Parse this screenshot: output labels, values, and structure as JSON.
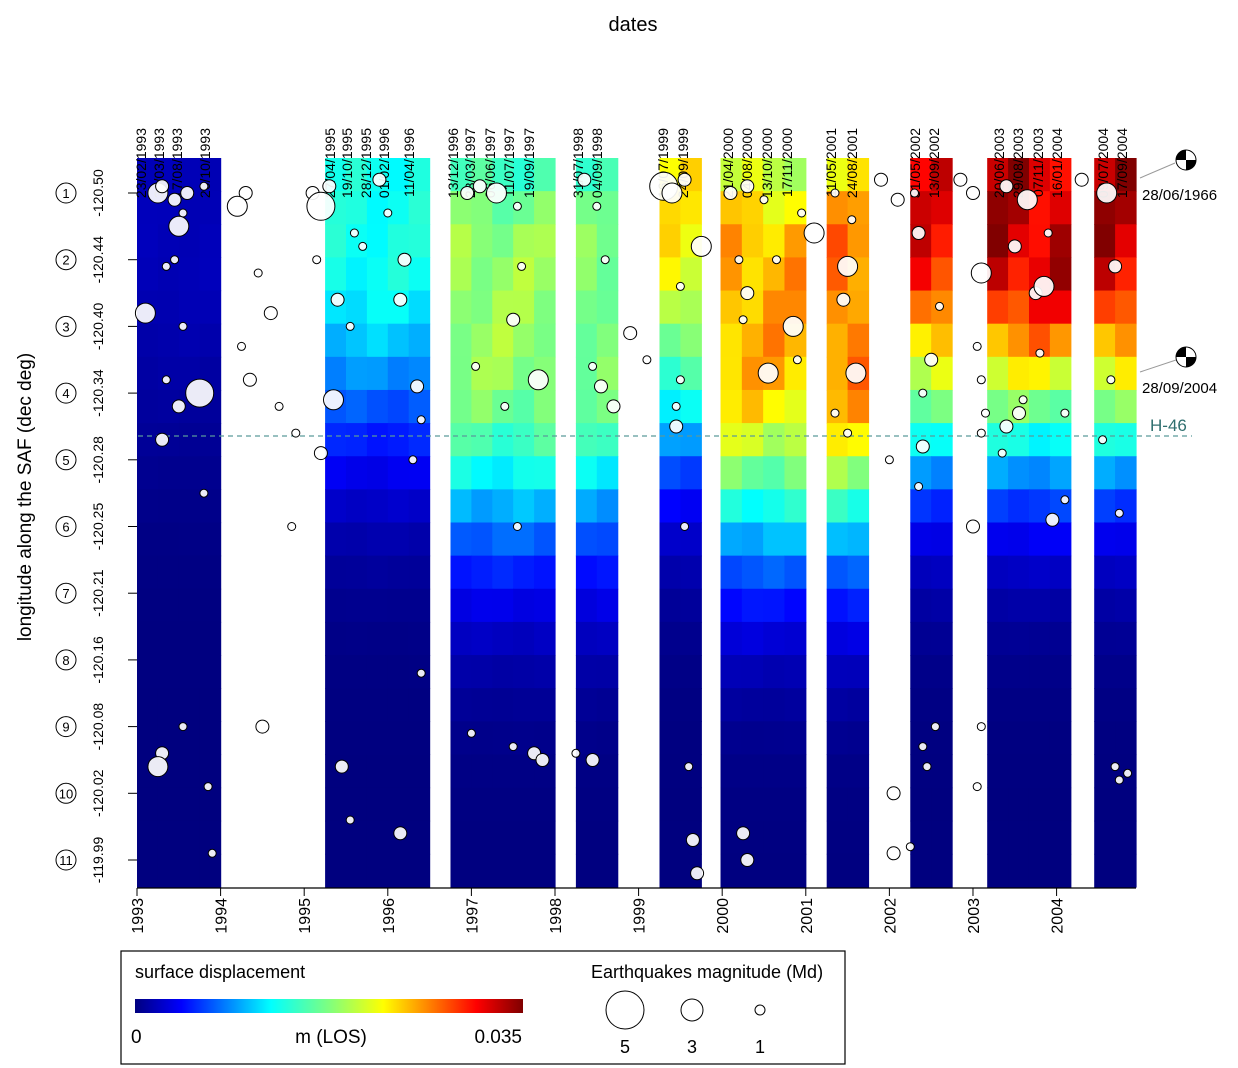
{
  "chart_data": {
    "type": "heatmap",
    "title": "dates",
    "ylabel": "longitude along the SAF (dec deg)",
    "xlabel": "",
    "xlim": [
      1993.0,
      2004.95
    ],
    "years": [
      "1993",
      "1994",
      "1995",
      "1996",
      "1997",
      "1998",
      "1999",
      "2000",
      "2001",
      "2002",
      "2003",
      "2004"
    ],
    "dates": [
      "23/02/1993",
      "30/03/1993",
      "17/08/1993",
      "26/10/1993",
      "27/04/1995",
      "19/10/1995",
      "28/12/1995",
      "01/02/1996",
      "11/04/1996",
      "13/12/1996",
      "28/03/1997",
      "06/06/1997",
      "11/07/1997",
      "19/09/1997",
      "31/07/1998",
      "04/09/1998",
      "16/07/1999",
      "24/09/1999",
      "21/04/2000",
      "04/08/2000",
      "13/10/2000",
      "17/11/2000",
      "11/05/2001",
      "24/08/2001",
      "31/05/2002",
      "13/09/2002",
      "20/06/2003",
      "29/08/2003",
      "07/11/2003",
      "16/01/2004",
      "09/07/2004",
      "17/09/2004"
    ],
    "sites": [
      "1",
      "2",
      "3",
      "4",
      "5",
      "6",
      "7",
      "8",
      "9",
      "10",
      "11"
    ],
    "site_longitudes": [
      "-120.50",
      "-120.44",
      "-120.40",
      "-120.34",
      "-120.28",
      "-120.25",
      "-120.21",
      "-120.16",
      "-120.08",
      "-120.02",
      "-119.99"
    ],
    "columns": [
      {
        "start": 1993.0,
        "end": 1994.0,
        "max": 0.002,
        "peak": 0.5
      },
      {
        "start": 1995.25,
        "end": 1996.5,
        "max": 0.014,
        "peak": 0.5
      },
      {
        "start": 1996.75,
        "end": 1998.0,
        "max": 0.02,
        "peak": 2.0
      },
      {
        "start": 1998.25,
        "end": 1998.75,
        "max": 0.019,
        "peak": 2.0
      },
      {
        "start": 1999.25,
        "end": 1999.75,
        "max": 0.024,
        "peak": 0.5
      },
      {
        "start": 1999.98,
        "end": 2001.0,
        "max": 0.027,
        "peak": 2.0
      },
      {
        "start": 2001.25,
        "end": 2001.75,
        "max": 0.029,
        "peak": 2.0
      },
      {
        "start": 2002.25,
        "end": 2002.75,
        "max": 0.033,
        "peak": 0.5
      },
      {
        "start": 2003.17,
        "end": 2004.17,
        "max": 0.035,
        "peak": 0.5
      },
      {
        "start": 2004.45,
        "end": 2004.95,
        "max": 0.035,
        "peak": 0.5
      }
    ],
    "colorbar": {
      "title": "surface displacement",
      "min": "0",
      "max": "0.035",
      "unit": "m (LOS)"
    },
    "earthquakes_legend": {
      "title": "Earthquakes magnitude (Md)",
      "magnitudes": [
        "5",
        "3",
        "1"
      ]
    },
    "annotations": {
      "event1": "28/06/1966",
      "event2": "28/09/2004",
      "line_label": "H-46"
    },
    "earthquakes": [
      [
        1993.25,
        1.0,
        3
      ],
      [
        1993.3,
        0.9,
        2
      ],
      [
        1993.45,
        1.1,
        2
      ],
      [
        1993.55,
        1.3,
        1
      ],
      [
        1993.6,
        1.0,
        2
      ],
      [
        1993.8,
        0.9,
        1
      ],
      [
        1993.5,
        1.5,
        3
      ],
      [
        1993.45,
        2.0,
        1
      ],
      [
        1993.35,
        2.1,
        1
      ],
      [
        1993.55,
        3.0,
        1
      ],
      [
        1993.1,
        2.8,
        3
      ],
      [
        1993.35,
        3.8,
        1
      ],
      [
        1993.75,
        4.0,
        4
      ],
      [
        1993.5,
        4.2,
        2
      ],
      [
        1993.3,
        4.7,
        2
      ],
      [
        1993.8,
        5.5,
        1
      ],
      [
        1993.55,
        9.0,
        1
      ],
      [
        1993.3,
        9.4,
        2
      ],
      [
        1993.25,
        9.6,
        3
      ],
      [
        1993.85,
        9.9,
        1
      ],
      [
        1993.9,
        10.9,
        1
      ],
      [
        1994.3,
        1.0,
        2
      ],
      [
        1994.2,
        1.2,
        3
      ],
      [
        1994.45,
        2.2,
        1
      ],
      [
        1994.6,
        2.8,
        2
      ],
      [
        1994.25,
        3.3,
        1
      ],
      [
        1994.35,
        3.8,
        2
      ],
      [
        1994.7,
        4.2,
        1
      ],
      [
        1994.9,
        4.6,
        1
      ],
      [
        1994.85,
        6.0,
        1
      ],
      [
        1994.5,
        9.0,
        2
      ],
      [
        1995.1,
        1.0,
        2
      ],
      [
        1995.2,
        1.2,
        4
      ],
      [
        1995.3,
        0.9,
        2
      ],
      [
        1995.15,
        2.0,
        1
      ],
      [
        1995.35,
        4.1,
        3
      ],
      [
        1995.2,
        4.9,
        2
      ],
      [
        1995.4,
        2.6,
        2
      ],
      [
        1995.6,
        1.6,
        1
      ],
      [
        1995.7,
        1.8,
        1
      ],
      [
        1995.9,
        0.8,
        2
      ],
      [
        1996.0,
        1.3,
        1
      ],
      [
        1996.2,
        2.0,
        2
      ],
      [
        1996.15,
        2.6,
        2
      ],
      [
        1996.35,
        3.9,
        2
      ],
      [
        1996.4,
        4.4,
        1
      ],
      [
        1996.3,
        5.0,
        1
      ],
      [
        1995.55,
        3.0,
        1
      ],
      [
        1995.45,
        9.6,
        2
      ],
      [
        1995.55,
        10.4,
        1
      ],
      [
        1996.15,
        10.6,
        2
      ],
      [
        1996.4,
        8.2,
        1
      ],
      [
        1996.95,
        1.0,
        2
      ],
      [
        1997.1,
        0.9,
        2
      ],
      [
        1997.3,
        1.0,
        3
      ],
      [
        1997.55,
        1.2,
        1
      ],
      [
        1997.6,
        2.1,
        1
      ],
      [
        1997.5,
        2.9,
        2
      ],
      [
        1997.8,
        3.8,
        3
      ],
      [
        1997.4,
        4.2,
        1
      ],
      [
        1997.05,
        3.6,
        1
      ],
      [
        1997.55,
        6.0,
        1
      ],
      [
        1997.5,
        9.3,
        1
      ],
      [
        1997.75,
        9.4,
        2
      ],
      [
        1997.85,
        9.5,
        2
      ],
      [
        1997.0,
        9.1,
        1
      ],
      [
        1998.35,
        0.8,
        2
      ],
      [
        1998.5,
        1.2,
        1
      ],
      [
        1998.6,
        2.0,
        1
      ],
      [
        1998.45,
        3.6,
        1
      ],
      [
        1998.55,
        3.9,
        2
      ],
      [
        1998.7,
        4.2,
        2
      ],
      [
        1998.25,
        9.4,
        1
      ],
      [
        1998.45,
        9.5,
        2
      ],
      [
        1998.9,
        3.1,
        2
      ],
      [
        1999.1,
        3.5,
        1
      ],
      [
        1999.3,
        0.9,
        4
      ],
      [
        1999.4,
        1.0,
        3
      ],
      [
        1999.55,
        0.8,
        2
      ],
      [
        1999.5,
        2.4,
        1
      ],
      [
        1999.5,
        3.8,
        1
      ],
      [
        1999.45,
        4.5,
        2
      ],
      [
        1999.45,
        4.2,
        1
      ],
      [
        1999.55,
        6.0,
        1
      ],
      [
        1999.6,
        9.6,
        1
      ],
      [
        1999.65,
        10.7,
        2
      ],
      [
        1999.7,
        11.2,
        2
      ],
      [
        1999.75,
        1.8,
        3
      ],
      [
        2000.1,
        1.0,
        2
      ],
      [
        2000.3,
        0.9,
        2
      ],
      [
        2000.5,
        1.1,
        1
      ],
      [
        2000.2,
        2.0,
        1
      ],
      [
        2000.3,
        2.5,
        2
      ],
      [
        2000.25,
        2.9,
        1
      ],
      [
        2000.55,
        3.7,
        3
      ],
      [
        2000.65,
        2.0,
        1
      ],
      [
        2000.85,
        3.0,
        3
      ],
      [
        2000.9,
        3.5,
        1
      ],
      [
        2000.95,
        1.3,
        1
      ],
      [
        2000.25,
        10.6,
        2
      ],
      [
        2000.3,
        11.0,
        2
      ],
      [
        2001.1,
        1.6,
        3
      ],
      [
        2001.35,
        1.0,
        1
      ],
      [
        2001.5,
        2.1,
        3
      ],
      [
        2001.55,
        1.4,
        1
      ],
      [
        2001.45,
        2.6,
        2
      ],
      [
        2001.6,
        3.7,
        3
      ],
      [
        2001.5,
        4.6,
        1
      ],
      [
        2001.35,
        4.3,
        1
      ],
      [
        2001.9,
        0.8,
        2
      ],
      [
        2002.1,
        1.1,
        2
      ],
      [
        2002.0,
        5.0,
        1
      ],
      [
        2002.05,
        10.0,
        2
      ],
      [
        2002.05,
        10.9,
        2
      ],
      [
        2002.3,
        1.0,
        1
      ],
      [
        2002.35,
        1.6,
        2
      ],
      [
        2002.6,
        2.7,
        1
      ],
      [
        2002.5,
        3.5,
        2
      ],
      [
        2002.4,
        4.0,
        1
      ],
      [
        2002.4,
        4.8,
        2
      ],
      [
        2002.35,
        5.4,
        1
      ],
      [
        2002.55,
        9.0,
        1
      ],
      [
        2002.4,
        9.3,
        1
      ],
      [
        2002.45,
        9.6,
        1
      ],
      [
        2002.25,
        10.8,
        1
      ],
      [
        2002.85,
        0.8,
        2
      ],
      [
        2003.0,
        1.0,
        2
      ],
      [
        2003.1,
        2.2,
        3
      ],
      [
        2003.05,
        3.3,
        1
      ],
      [
        2003.1,
        3.8,
        1
      ],
      [
        2003.15,
        4.3,
        1
      ],
      [
        2003.1,
        4.6,
        1
      ],
      [
        2003.0,
        6.0,
        2
      ],
      [
        2003.1,
        9.0,
        1
      ],
      [
        2003.05,
        9.9,
        1
      ],
      [
        2003.4,
        0.9,
        2
      ],
      [
        2003.65,
        1.1,
        3
      ],
      [
        2003.5,
        1.8,
        2
      ],
      [
        2003.75,
        2.5,
        2
      ],
      [
        2003.8,
        3.4,
        1
      ],
      [
        2003.55,
        4.3,
        2
      ],
      [
        2003.4,
        4.5,
        2
      ],
      [
        2003.35,
        4.9,
        1
      ],
      [
        2003.6,
        4.1,
        1
      ],
      [
        2003.95,
        5.9,
        2
      ],
      [
        2004.1,
        5.6,
        1
      ],
      [
        2004.1,
        4.3,
        1
      ],
      [
        2003.9,
        1.6,
        1
      ],
      [
        2003.85,
        2.4,
        3
      ],
      [
        2004.3,
        0.8,
        2
      ],
      [
        2004.6,
        1.0,
        3
      ],
      [
        2004.7,
        2.1,
        2
      ],
      [
        2004.65,
        3.8,
        1
      ],
      [
        2004.55,
        4.7,
        1
      ],
      [
        2004.75,
        5.8,
        1
      ],
      [
        2004.7,
        9.6,
        1
      ],
      [
        2004.85,
        9.7,
        1
      ],
      [
        2004.75,
        9.8,
        1
      ]
    ]
  }
}
